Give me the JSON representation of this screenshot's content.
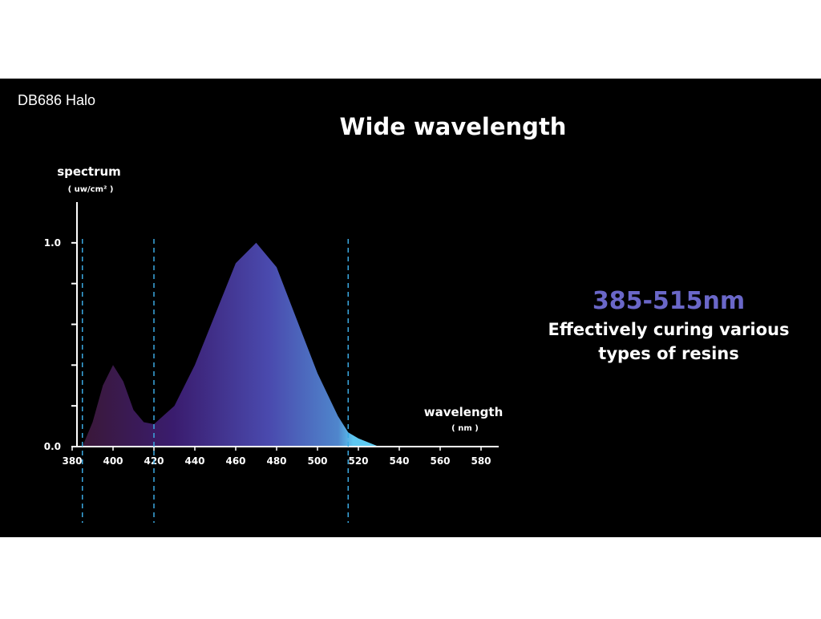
{
  "header": "DB686 Halo",
  "chart_data": {
    "type": "area",
    "title": "Wide wavelength",
    "y_label": "spectrum",
    "y_unit": "( uw/cm² )",
    "x_label": "wavelength",
    "x_unit": "( nm )",
    "x": [
      385,
      390,
      395,
      400,
      405,
      410,
      415,
      420,
      430,
      440,
      450,
      460,
      470,
      480,
      490,
      500,
      510,
      515,
      520,
      530
    ],
    "values": [
      0,
      0.12,
      0.3,
      0.4,
      0.32,
      0.18,
      0.12,
      0.11,
      0.2,
      0.4,
      0.65,
      0.9,
      1.0,
      0.88,
      0.62,
      0.36,
      0.15,
      0.07,
      0.04,
      0
    ],
    "xlim": [
      380,
      590
    ],
    "ylim": [
      0,
      1.2
    ],
    "xticks": [
      380,
      400,
      420,
      440,
      460,
      480,
      500,
      520,
      540,
      560,
      580
    ],
    "yticks": [
      {
        "value": 0,
        "label": "0.0"
      },
      {
        "value": 1,
        "label": "1.0"
      }
    ],
    "minor_yticks": [
      0.2,
      0.4,
      0.6,
      0.8
    ],
    "range_lines": [
      385,
      420,
      515
    ],
    "range_label": "385-515nm",
    "note_lines": [
      "Effectively curing various",
      "types of resins"
    ]
  }
}
